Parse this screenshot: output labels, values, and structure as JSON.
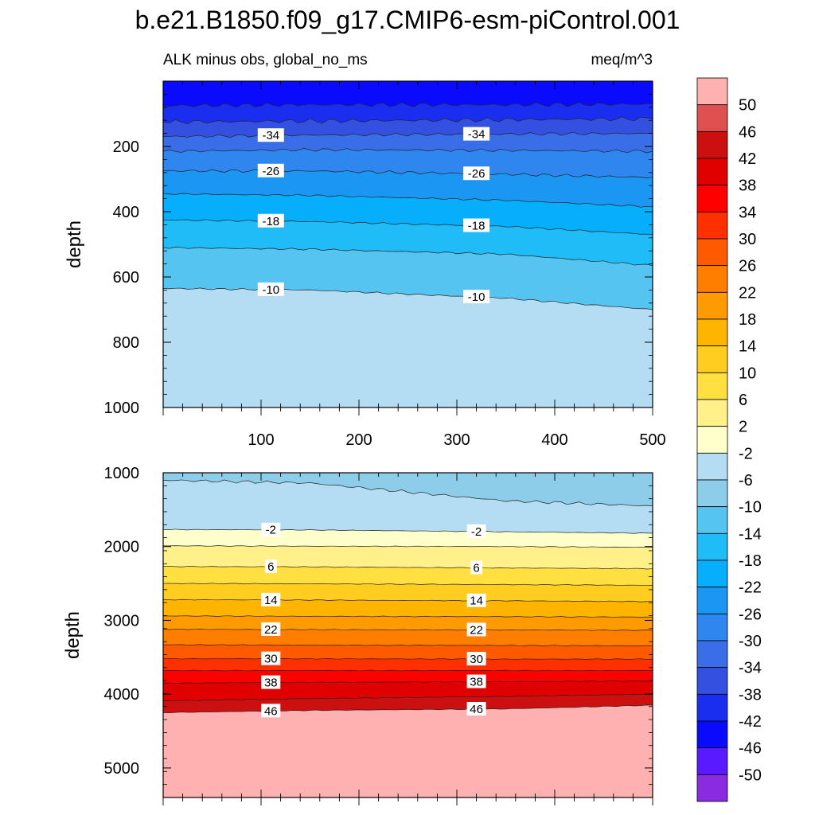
{
  "title": "b.e21.B1850.f09_g17.CMIP6-esm-piControl.001",
  "subtitle_left": "ALK minus obs, global_no_ms",
  "subtitle_right": "meq/m^3",
  "ylabel": "depth",
  "colorbar": {
    "levels": [
      -50,
      -46,
      -42,
      -38,
      -34,
      -30,
      -26,
      -22,
      -18,
      -14,
      -10,
      -6,
      -2,
      2,
      6,
      10,
      14,
      18,
      22,
      26,
      30,
      34,
      38,
      42,
      46,
      50
    ],
    "level_labels": [
      "50",
      "46",
      "42",
      "38",
      "34",
      "30",
      "26",
      "22",
      "18",
      "14",
      "10",
      "6",
      "2",
      "-2",
      "-6",
      "-10",
      "-14",
      "-18",
      "-22",
      "-26",
      "-30",
      "-34",
      "-38",
      "-42",
      "-46",
      "-50"
    ],
    "colors": [
      "#8a2be2",
      "#5a1aff",
      "#0a0aff",
      "#1a2ef0",
      "#3450e0",
      "#3a6ee8",
      "#2f86ee",
      "#1b96f2",
      "#06aefc",
      "#1fbcf8",
      "#55c4f0",
      "#8dcdea",
      "#b4dcf2",
      "#ffffcc",
      "#fff08a",
      "#ffe040",
      "#ffcc20",
      "#ffb400",
      "#ff9a00",
      "#ff7e00",
      "#ff5a00",
      "#ff3000",
      "#ff0000",
      "#e00000",
      "#cc1010",
      "#e05050",
      "#ffb0b0"
    ]
  },
  "chart_data": [
    {
      "type": "contour",
      "panel": "upper",
      "xlim": [
        0,
        500
      ],
      "ylim": [
        1000,
        0
      ],
      "x_tick_labels": [
        "100",
        "200",
        "300",
        "400",
        "500"
      ],
      "y_tick_labels": [
        "200",
        "400",
        "600",
        "800",
        "1000"
      ],
      "contour_labels": [
        "-34",
        "-34",
        "-26",
        "-26",
        "-18",
        "-18",
        "-10",
        "-10"
      ],
      "contours": [
        {
          "level": -42,
          "depth": [
            75,
            72,
            72,
            70
          ]
        },
        {
          "level": -38,
          "depth": [
            125,
            122,
            118,
            115
          ]
        },
        {
          "level": -34,
          "depth": [
            170,
            165,
            162,
            160
          ]
        },
        {
          "level": -30,
          "depth": [
            215,
            210,
            212,
            215
          ]
        },
        {
          "level": -26,
          "depth": [
            275,
            275,
            285,
            295
          ]
        },
        {
          "level": -22,
          "depth": [
            345,
            350,
            365,
            385
          ]
        },
        {
          "level": -18,
          "depth": [
            425,
            430,
            445,
            470
          ]
        },
        {
          "level": -14,
          "depth": [
            510,
            515,
            530,
            565
          ]
        },
        {
          "level": -10,
          "depth": [
            635,
            640,
            665,
            700
          ]
        }
      ],
      "x_at": [
        0,
        150,
        350,
        500
      ],
      "below_last_value": -6
    },
    {
      "type": "contour",
      "panel": "lower",
      "ylim": [
        5400,
        1000
      ],
      "y_tick_labels": [
        "1000",
        "2000",
        "3000",
        "4000",
        "5000"
      ],
      "contour_labels": [
        "-2",
        "-2",
        "6",
        "6",
        "14",
        "14",
        "22",
        "22",
        "30",
        "30",
        "38",
        "38",
        "46",
        "46"
      ],
      "contours": [
        {
          "level": -6,
          "depth": [
            1100,
            1140,
            1380,
            1450
          ]
        },
        {
          "level": -2,
          "depth": [
            1770,
            1775,
            1800,
            1820
          ]
        },
        {
          "level": 2,
          "depth": [
            1990,
            1995,
            2000,
            2010
          ]
        },
        {
          "level": 6,
          "depth": [
            2270,
            2275,
            2290,
            2300
          ]
        },
        {
          "level": 10,
          "depth": [
            2500,
            2505,
            2515,
            2525
          ]
        },
        {
          "level": 14,
          "depth": [
            2720,
            2725,
            2735,
            2745
          ]
        },
        {
          "level": 18,
          "depth": [
            2940,
            2945,
            2950,
            2955
          ]
        },
        {
          "level": 22,
          "depth": [
            3120,
            3125,
            3130,
            3135
          ]
        },
        {
          "level": 26,
          "depth": [
            3330,
            3335,
            3340,
            3345
          ]
        },
        {
          "level": 30,
          "depth": [
            3520,
            3520,
            3525,
            3525
          ]
        },
        {
          "level": 34,
          "depth": [
            3680,
            3680,
            3680,
            3680
          ]
        },
        {
          "level": 38,
          "depth": [
            3850,
            3840,
            3830,
            3820
          ]
        },
        {
          "level": 42,
          "depth": [
            4090,
            4060,
            4030,
            4000
          ]
        },
        {
          "level": 46,
          "depth": [
            4250,
            4220,
            4200,
            4150
          ]
        }
      ],
      "x_at": [
        0,
        150,
        350,
        500
      ],
      "top_value": -10,
      "below_last_value": 50
    }
  ]
}
